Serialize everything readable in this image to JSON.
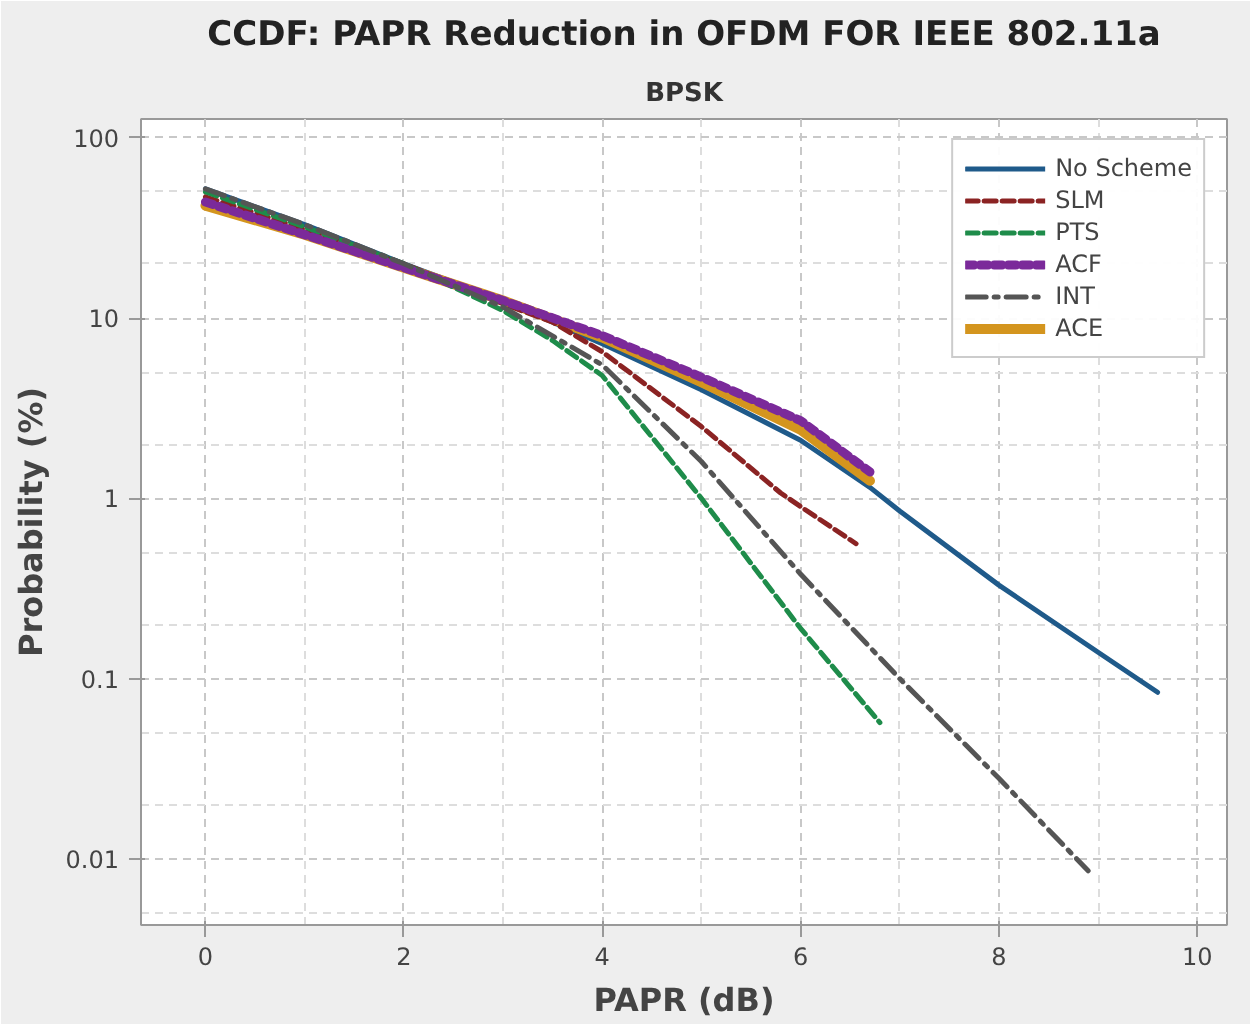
{
  "chart_data": {
    "type": "line",
    "title": "CCDF: PAPR Reduction in OFDM FOR IEEE 802.11a",
    "subtitle": "BPSK",
    "xlabel": "PAPR (dB)",
    "ylabel": "Probability (%)",
    "log": "y",
    "grid": true,
    "legend": "top right",
    "marker": "none",
    "xlim": [
      -0.65,
      10.3
    ],
    "xticks": [
      0,
      2,
      4,
      6,
      8,
      10
    ],
    "ylim": [
      0.0043,
      127
    ],
    "yticks": [
      0.01,
      0.1,
      1,
      10,
      100
    ],
    "series": [
      {
        "name": "No Scheme",
        "color": "#1f5a8a",
        "line_style": "solid",
        "x": [
          0,
          1,
          2,
          3,
          4,
          5,
          6,
          6.7,
          7,
          8,
          9,
          9.6
        ],
        "values": [
          52,
          33,
          20,
          12.5,
          7.2,
          4.0,
          2.1,
          1.15,
          0.85,
          0.33,
          0.14,
          0.084
        ]
      },
      {
        "name": "SLM",
        "color": "#8b2323",
        "line_style": "dashed",
        "x": [
          0,
          1,
          2,
          3,
          3.5,
          4,
          5,
          5.8,
          6,
          6.56
        ],
        "values": [
          47,
          31,
          20,
          12,
          9.5,
          6.5,
          2.5,
          1.07,
          0.9,
          0.56
        ]
      },
      {
        "name": "PTS",
        "color": "#1e8c4a",
        "line_style": "dashed",
        "x": [
          0,
          1,
          2,
          3,
          3.5,
          4,
          5,
          6,
          6.8
        ],
        "values": [
          50,
          32,
          20,
          11,
          7.5,
          4.8,
          1.0,
          0.19,
          0.057
        ]
      },
      {
        "name": "ACF",
        "color": "#7b2a9a",
        "line_style": "dotted",
        "x": [
          0,
          1,
          2,
          3,
          4,
          5,
          6,
          6.7
        ],
        "values": [
          44,
          29,
          19,
          12.5,
          8.0,
          4.7,
          2.7,
          1.4
        ]
      },
      {
        "name": "INT",
        "color": "#555555",
        "line_style": "dashdot",
        "x": [
          0,
          1,
          2,
          3,
          4,
          5,
          6,
          7,
          8,
          8.9
        ],
        "values": [
          52,
          33,
          20,
          11.5,
          5.5,
          1.6,
          0.38,
          0.1,
          0.028,
          0.0086
        ]
      },
      {
        "name": "ACE",
        "color": "#d4951e",
        "line_style": "solid",
        "x": [
          0,
          1,
          2,
          3,
          4,
          5,
          6,
          6.7
        ],
        "values": [
          42,
          29,
          19,
          12.5,
          7.8,
          4.4,
          2.4,
          1.25
        ]
      }
    ]
  }
}
